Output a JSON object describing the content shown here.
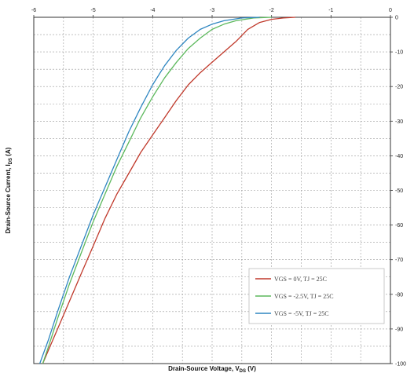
{
  "chart_data": {
    "type": "line",
    "title": "",
    "xlabel": "Drain-Source Voltage, V",
    "xlabel_sub": "DS",
    "xlabel_unit": " (V)",
    "ylabel": "Drain-Source Current, I",
    "ylabel_sub": "DS",
    "ylabel_unit": " (A)",
    "xlim": [
      -6,
      0
    ],
    "ylim": [
      -100,
      0
    ],
    "x_ticks": [
      -6,
      -5,
      -4,
      -3,
      -2,
      -1,
      0
    ],
    "x_tick_labels": [
      "-6",
      "-5",
      "-4",
      "-3",
      "-2",
      "-1",
      "0"
    ],
    "y_ticks": [
      0,
      -10,
      -20,
      -30,
      -40,
      -50,
      -60,
      -70,
      -80,
      -90,
      -100
    ],
    "y_tick_labels": [
      "0",
      "-10",
      "-20",
      "-30",
      "-40",
      "-50",
      "-60",
      "-70",
      "-80",
      "-90",
      "-100"
    ],
    "x_axis_position": "top",
    "y_axis_position": "right",
    "grid": true,
    "legend_position": "bottom-right",
    "series": [
      {
        "name": "VGS = 0V, TJ = 25C",
        "color": "#c0392b",
        "points": [
          [
            -1.6,
            0
          ],
          [
            -1.8,
            -0.2
          ],
          [
            -2.0,
            -0.6
          ],
          [
            -2.2,
            -1.5
          ],
          [
            -2.4,
            -3.5
          ],
          [
            -2.6,
            -7
          ],
          [
            -2.8,
            -10
          ],
          [
            -3.0,
            -13
          ],
          [
            -3.2,
            -16
          ],
          [
            -3.4,
            -19.5
          ],
          [
            -3.6,
            -24
          ],
          [
            -3.8,
            -29
          ],
          [
            -4.0,
            -34
          ],
          [
            -4.2,
            -39
          ],
          [
            -4.4,
            -45
          ],
          [
            -4.6,
            -51
          ],
          [
            -4.8,
            -58
          ],
          [
            -5.0,
            -66
          ],
          [
            -5.2,
            -74
          ],
          [
            -5.4,
            -82
          ],
          [
            -5.6,
            -90
          ],
          [
            -5.75,
            -96
          ],
          [
            -5.85,
            -100
          ]
        ]
      },
      {
        "name": "VGS = -2.5V, TJ = 25C",
        "color": "#5cb85c",
        "points": [
          [
            -2.0,
            0
          ],
          [
            -2.3,
            -0.2
          ],
          [
            -2.6,
            -1
          ],
          [
            -2.8,
            -2
          ],
          [
            -3.0,
            -3.5
          ],
          [
            -3.2,
            -6
          ],
          [
            -3.4,
            -9
          ],
          [
            -3.6,
            -13
          ],
          [
            -3.8,
            -17.5
          ],
          [
            -4.0,
            -23
          ],
          [
            -4.2,
            -29
          ],
          [
            -4.4,
            -36
          ],
          [
            -4.6,
            -43
          ],
          [
            -4.8,
            -51
          ],
          [
            -5.0,
            -59
          ],
          [
            -5.2,
            -68
          ],
          [
            -5.4,
            -77
          ],
          [
            -5.6,
            -87
          ],
          [
            -5.75,
            -95
          ],
          [
            -5.85,
            -100
          ]
        ]
      },
      {
        "name": "VGS = -5V, TJ = 25C",
        "color": "#2e86c1",
        "points": [
          [
            -2.2,
            0
          ],
          [
            -2.5,
            -0.2
          ],
          [
            -2.8,
            -1
          ],
          [
            -3.0,
            -2
          ],
          [
            -3.2,
            -3.5
          ],
          [
            -3.4,
            -6
          ],
          [
            -3.6,
            -9.5
          ],
          [
            -3.8,
            -14
          ],
          [
            -4.0,
            -19.5
          ],
          [
            -4.2,
            -26
          ],
          [
            -4.4,
            -33
          ],
          [
            -4.6,
            -41
          ],
          [
            -4.8,
            -49
          ],
          [
            -5.0,
            -57
          ],
          [
            -5.2,
            -66
          ],
          [
            -5.4,
            -75
          ],
          [
            -5.6,
            -85
          ],
          [
            -5.75,
            -93
          ],
          [
            -5.9,
            -100
          ]
        ]
      }
    ]
  }
}
